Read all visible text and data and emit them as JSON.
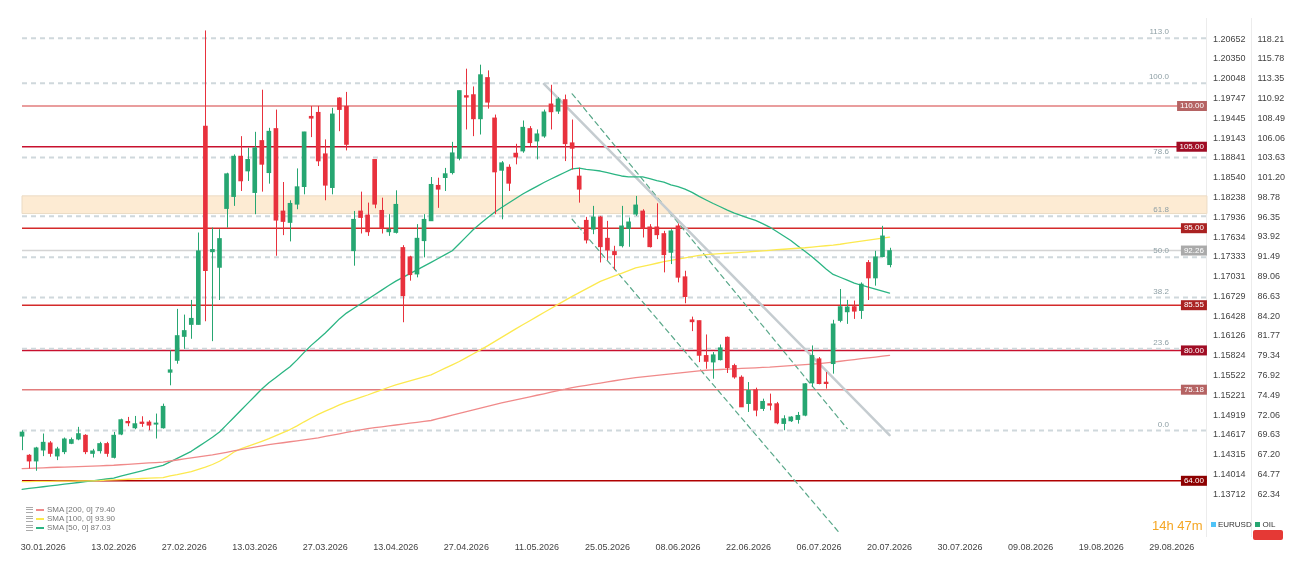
{
  "chart_data": {
    "type": "candlestick",
    "categories": [
      null,
      null,
      null,
      "30.01.2026",
      null,
      null,
      null,
      null,
      null,
      null,
      null,
      null,
      null,
      "13.02.2026",
      null,
      null,
      null,
      null,
      null,
      null,
      null,
      null,
      null,
      "27.02.2026",
      null,
      null,
      null,
      null,
      null,
      null,
      null,
      null,
      null,
      "13.03.2026",
      null,
      null,
      null,
      null,
      null,
      null,
      null,
      null,
      null,
      "27.03.2026",
      null,
      null,
      null,
      null,
      null,
      null,
      null,
      null,
      null,
      "13.04.2026",
      null,
      null,
      null,
      null,
      null,
      null,
      null,
      null,
      null,
      "27.04.2026",
      null,
      null,
      null,
      null,
      null,
      null,
      null,
      null,
      null,
      "11.05.2026",
      null,
      null,
      null,
      null,
      null,
      null,
      null,
      null,
      null,
      "25.05.2026",
      null,
      null,
      null,
      null,
      null,
      null,
      null,
      null,
      null,
      "08.06.2026",
      null,
      null,
      null,
      null,
      null,
      null,
      null,
      null,
      null,
      "22.06.2026",
      null,
      null,
      null,
      null,
      null,
      null,
      null,
      null,
      null,
      "06.07.2026",
      null,
      null,
      null,
      null,
      null,
      null,
      null,
      null,
      null,
      "20.07.2026",
      null,
      null,
      null,
      null,
      null,
      null,
      null,
      null,
      null,
      "30.07.2026",
      null,
      null,
      null,
      null,
      null,
      null,
      null,
      null,
      null,
      "09.08.2026",
      null,
      null,
      null,
      null,
      null,
      null,
      null,
      null,
      null,
      "19.08.2026",
      null,
      null,
      null,
      null,
      null,
      null,
      null,
      null,
      null,
      "29.08.2026",
      null,
      null,
      null,
      null,
      null
    ],
    "ohlc": [
      [
        69.47,
        70.2,
        67.76,
        69.99
      ],
      [
        67.15,
        67.27,
        65.52,
        66.42
      ],
      [
        66.42,
        68.17,
        65.23,
        68.05
      ],
      [
        67.76,
        69.8,
        67.03,
        68.74
      ],
      [
        68.66,
        68.87,
        66.95,
        67.35
      ],
      [
        67.03,
        68.17,
        66.54,
        67.92
      ],
      [
        67.56,
        69.31,
        67.27,
        69.15
      ],
      [
        68.58,
        69.31,
        68.5,
        69.07
      ],
      [
        69.11,
        70.62,
        68.98,
        69.8
      ],
      [
        69.6,
        69.72,
        67.27,
        67.56
      ],
      [
        67.35,
        67.92,
        66.86,
        67.68
      ],
      [
        67.68,
        68.78,
        67.35,
        68.58
      ],
      [
        68.58,
        68.78,
        66.95,
        67.35
      ],
      [
        66.86,
        70.0,
        66.74,
        69.6
      ],
      [
        69.72,
        71.63,
        69.6,
        71.51
      ],
      [
        71.3,
        71.84,
        70.7,
        71.1
      ],
      [
        70.49,
        71.96,
        70.33,
        71.02
      ],
      [
        71.22,
        71.92,
        70.62,
        71.02
      ],
      [
        71.22,
        71.43,
        70.2,
        70.82
      ],
      [
        70.94,
        72.25,
        69.19,
        71.1
      ],
      [
        70.49,
        73.47,
        70.41,
        73.15
      ],
      [
        77.31,
        80.0,
        75.72,
        77.63
      ],
      [
        78.77,
        85.1,
        78.37,
        81.83
      ],
      [
        81.71,
        84.4,
        80.2,
        82.45
      ],
      [
        83.18,
        86.2,
        81.43,
        83.95
      ],
      [
        83.18,
        94.47,
        83.18,
        92.23
      ],
      [
        107.52,
        119.27,
        83.58,
        89.78
      ],
      [
        92.1,
        95.08,
        81.14,
        92.4
      ],
      [
        90.19,
        94.88,
        86.19,
        93.74
      ],
      [
        97.41,
        101.81,
        95.08,
        101.69
      ],
      [
        98.88,
        104.06,
        97.74,
        103.85
      ],
      [
        103.85,
        106.3,
        99.57,
        100.8
      ],
      [
        102.02,
        104.88,
        100.8,
        103.45
      ],
      [
        99.37,
        106.83,
        96.72,
        104.88
      ],
      [
        105.77,
        112.0,
        99.49,
        102.84
      ],
      [
        101.81,
        107.32,
        100.47,
        106.91
      ],
      [
        107.24,
        109.56,
        91.62,
        95.98
      ],
      [
        97.12,
        100.67,
        94.15,
        95.82
      ],
      [
        95.7,
        98.43,
        93.38,
        98.06
      ],
      [
        97.94,
        102.34,
        97.33,
        100.1
      ],
      [
        100.1,
        106.83,
        99.16,
        106.83
      ],
      [
        108.74,
        110.0,
        106.18,
        108.5
      ],
      [
        109.23,
        110.0,
        102.63,
        103.25
      ],
      [
        104.14,
        105.9,
        98.43,
        100.27
      ],
      [
        99.98,
        109.77,
        99.16,
        109.03
      ],
      [
        111.0,
        111.08,
        106.91,
        109.56
      ],
      [
        109.97,
        111.73,
        104.55,
        105.28
      ],
      [
        92.23,
        97.12,
        90.4,
        96.1
      ],
      [
        97.12,
        99.49,
        94.35,
        96.31
      ],
      [
        96.63,
        98.14,
        94.06,
        94.55
      ],
      [
        103.45,
        103.45,
        97.45,
        97.94
      ],
      [
        97.2,
        98.75,
        94.35,
        95.0
      ],
      [
        94.55,
        96.72,
        94.06,
        94.88
      ],
      [
        94.47,
        99.65,
        94.35,
        97.94
      ],
      [
        92.64,
        92.92,
        83.46,
        86.7
      ],
      [
        91.5,
        91.62,
        88.56,
        89.29
      ],
      [
        89.37,
        95.5,
        88.97,
        93.78
      ],
      [
        93.46,
        96.72,
        91.42,
        96.1
      ],
      [
        95.9,
        101.28,
        95.9,
        100.39
      ],
      [
        100.27,
        101.2,
        97.5,
        99.78
      ],
      [
        101.2,
        102.4,
        99.57,
        101.7
      ],
      [
        101.81,
        105.6,
        101.6,
        104.26
      ],
      [
        103.57,
        111.9,
        103.33,
        111.9
      ],
      [
        111.28,
        114.58,
        107.12,
        111.08
      ],
      [
        111.4,
        112.4,
        106.3,
        108.42
      ],
      [
        108.42,
        115.07,
        106.5,
        113.85
      ],
      [
        113.5,
        114.37,
        109.68,
        110.46
      ],
      [
        108.54,
        108.95,
        96.72,
        101.9
      ],
      [
        102.1,
        103.24,
        96.1,
        103.04
      ],
      [
        102.5,
        102.84,
        99.57,
        100.51
      ],
      [
        104.22,
        105.36,
        102.84,
        103.73
      ],
      [
        104.47,
        108.22,
        104.26,
        107.4
      ],
      [
        107.24,
        107.53,
        105.08,
        105.49
      ],
      [
        105.69,
        107.12,
        103.45,
        106.59
      ],
      [
        106.3,
        109.56,
        106.1,
        109.28
      ],
      [
        110.26,
        112.6,
        107.12,
        109.28
      ],
      [
        109.36,
        111.08,
        109.03,
        110.87
      ],
      [
        110.79,
        111.4,
        103.24,
        105.36
      ],
      [
        105.49,
        108.34,
        102.2,
        104.8
      ],
      [
        101.41,
        102.43,
        98.14,
        99.78
      ],
      [
        95.98,
        96.39,
        93.13,
        93.54
      ],
      [
        94.88,
        97.74,
        94.27,
        96.39
      ],
      [
        96.39,
        96.51,
        90.8,
        92.72
      ],
      [
        93.78,
        95.9,
        91.09,
        92.31
      ],
      [
        92.15,
        92.84,
        89.9,
        91.74
      ],
      [
        92.84,
        97.74,
        92.64,
        95.29
      ],
      [
        94.96,
        96.31,
        92.72,
        95.78
      ],
      [
        96.72,
        98.96,
        96.51,
        97.86
      ],
      [
        97.12,
        97.33,
        93.86,
        95.0
      ],
      [
        95.17,
        95.5,
        92.64,
        92.72
      ],
      [
        95.17,
        98.06,
        93.66,
        94.19
      ],
      [
        94.35,
        94.68,
        89.58,
        91.74
      ],
      [
        92.03,
        94.88,
        90.6,
        94.68
      ],
      [
        95.29,
        95.58,
        88.35,
        88.97
      ],
      [
        89.05,
        89.78,
        85.79,
        86.6
      ],
      [
        83.76,
        84.15,
        82.37,
        83.51
      ],
      [
        83.67,
        83.67,
        78.57,
        79.39
      ],
      [
        79.39,
        81.96,
        77.75,
        78.65
      ],
      [
        78.57,
        79.8,
        76.53,
        79.47
      ],
      [
        78.85,
        80.73,
        78.77,
        80.33
      ],
      [
        81.63,
        81.71,
        77.23,
        77.88
      ],
      [
        78.16,
        78.37,
        76.53,
        76.73
      ],
      [
        76.73,
        76.94,
        73.06,
        73.06
      ],
      [
        73.47,
        76.12,
        72.45,
        75.1
      ],
      [
        75.18,
        75.43,
        71.92,
        72.66
      ],
      [
        72.86,
        74.08,
        72.57,
        73.76
      ],
      [
        73.47,
        74.7,
        72.65,
        73.27
      ],
      [
        73.47,
        73.68,
        70.94,
        71.1
      ],
      [
        71.02,
        72.04,
        70.2,
        71.63
      ],
      [
        71.35,
        71.92,
        71.22,
        71.84
      ],
      [
        71.51,
        72.45,
        71.02,
        72.04
      ],
      [
        72.04,
        76.0,
        71.92,
        75.92
      ],
      [
        76.0,
        80.61,
        75.51,
        79.39
      ],
      [
        78.98,
        79.19,
        75.84,
        75.92
      ],
      [
        76.12,
        77.35,
        75.31,
        75.92
      ],
      [
        78.37,
        83.76,
        77.15,
        83.26
      ],
      [
        83.67,
        87.54,
        83.46,
        85.38
      ],
      [
        84.73,
        86.2,
        83.26,
        85.34
      ],
      [
        85.38,
        86.12,
        83.87,
        84.81
      ],
      [
        84.89,
        88.35,
        83.87,
        88.15
      ],
      [
        90.8,
        91.09,
        86.19,
        88.89
      ],
      [
        88.89,
        92.23,
        87.95,
        91.5
      ],
      [
        91.5,
        95.29,
        91.42,
        94.06
      ],
      [
        90.52,
        92.6,
        90.2,
        92.26
      ],
      null,
      null,
      null,
      null,
      null,
      null,
      null,
      null,
      null,
      null,
      null,
      null,
      null,
      null,
      null,
      null,
      null,
      null,
      null,
      null,
      null,
      null,
      null,
      null,
      null,
      null,
      null,
      null,
      null,
      null,
      null,
      null,
      null,
      null,
      null,
      null,
      null,
      null,
      null,
      null,
      null,
      null,
      null,
      null,
      null
    ],
    "series": [
      {
        "type": "line",
        "name": "SMA [200, 0] 79.40",
        "color": "#f08a8a",
        "values": [
          65.5,
          65.53,
          65.56,
          65.59,
          65.63,
          65.66,
          65.69,
          65.72,
          65.75,
          65.78,
          65.81,
          65.84,
          65.88,
          65.91,
          65.97,
          66.02,
          66.08,
          66.13,
          66.19,
          66.24,
          66.3,
          66.43,
          66.55,
          66.68,
          66.8,
          66.93,
          67.05,
          67.18,
          67.34,
          67.5,
          67.66,
          67.82,
          67.97,
          68.13,
          68.29,
          68.43,
          68.55,
          68.67,
          68.79,
          68.91,
          69.03,
          69.15,
          69.28,
          69.44,
          69.6,
          69.76,
          69.93,
          70.09,
          70.25,
          70.41,
          70.52,
          70.63,
          70.74,
          70.85,
          70.96,
          71.07,
          71.18,
          71.29,
          71.4,
          71.62,
          71.83,
          72.05,
          72.27,
          72.48,
          72.7,
          72.92,
          73.13,
          73.35,
          73.56,
          73.75,
          73.93,
          74.12,
          74.31,
          74.5,
          74.68,
          74.87,
          75.06,
          75.24,
          75.44,
          75.58,
          75.72,
          75.86,
          76.0,
          76.14,
          76.28,
          76.42,
          76.55,
          76.66,
          76.75,
          76.84,
          76.94,
          77.03,
          77.12,
          77.21,
          77.31,
          77.4,
          77.49,
          77.57,
          77.61,
          77.66,
          77.7,
          77.74,
          77.79,
          77.83,
          77.87,
          77.91,
          77.95,
          78.02,
          78.08,
          78.14,
          78.2,
          78.26,
          78.32,
          78.38,
          78.47,
          78.57,
          78.67,
          78.78,
          78.88,
          78.99,
          79.09,
          79.19,
          79.3,
          79.4,
          null,
          null,
          null,
          null,
          null,
          null,
          null,
          null,
          null,
          null,
          null,
          null,
          null,
          null,
          null,
          null,
          null,
          null,
          null,
          null,
          null,
          null,
          null,
          null,
          null,
          null,
          null,
          null,
          null,
          null,
          null,
          null,
          null,
          null,
          null,
          null,
          null,
          null,
          null,
          null,
          null,
          null,
          null,
          null,
          null
        ]
      },
      {
        "type": "line",
        "name": "SMA [100, 0] 93.90",
        "color": "#fce94f",
        "values": [
          63.9,
          63.91,
          63.92,
          63.93,
          63.94,
          63.95,
          63.96,
          63.97,
          63.98,
          63.99,
          64.0,
          64.02,
          64.07,
          64.11,
          64.15,
          64.19,
          64.23,
          64.28,
          64.32,
          64.36,
          64.4,
          64.6,
          64.76,
          64.94,
          65.13,
          65.4,
          65.68,
          66.0,
          66.4,
          66.9,
          67.5,
          67.92,
          68.23,
          68.54,
          68.85,
          69.18,
          69.55,
          69.92,
          70.29,
          70.74,
          71.24,
          71.71,
          72.16,
          72.55,
          72.93,
          73.31,
          73.65,
          73.94,
          74.24,
          74.53,
          74.85,
          75.16,
          75.48,
          75.77,
          76.02,
          76.26,
          76.51,
          76.75,
          77.0,
          77.41,
          77.82,
          78.23,
          78.64,
          79.11,
          79.59,
          80.07,
          80.56,
          81.08,
          81.6,
          82.13,
          82.65,
          83.15,
          83.65,
          84.15,
          84.65,
          85.15,
          85.65,
          86.15,
          86.63,
          87.09,
          87.55,
          88.02,
          88.47,
          88.81,
          89.14,
          89.47,
          89.8,
          90.12,
          90.31,
          90.5,
          90.7,
          90.89,
          91.05,
          91.2,
          91.35,
          91.51,
          91.66,
          91.77,
          91.82,
          91.87,
          91.93,
          91.98,
          92.04,
          92.1,
          92.17,
          92.23,
          92.29,
          92.36,
          92.42,
          92.48,
          92.54,
          92.6,
          92.68,
          92.77,
          92.85,
          92.93,
          93.03,
          93.16,
          93.28,
          93.41,
          93.53,
          93.65,
          93.78,
          93.9,
          null,
          null,
          null,
          null,
          null,
          null,
          null,
          null,
          null,
          null,
          null,
          null,
          null,
          null,
          null,
          null,
          null,
          null,
          null,
          null,
          null,
          null,
          null,
          null,
          null,
          null,
          null,
          null,
          null,
          null,
          null,
          null,
          null,
          null,
          null,
          null,
          null,
          null,
          null,
          null,
          null,
          null,
          null,
          null,
          null
        ]
      },
      {
        "type": "line",
        "name": "SMA [50, 0] 87.03",
        "color": "#2bb583",
        "values": [
          62.95,
          63.06,
          63.16,
          63.27,
          63.37,
          63.48,
          63.58,
          63.69,
          63.79,
          63.9,
          64.0,
          64.11,
          64.22,
          64.34,
          64.57,
          64.79,
          65.01,
          65.23,
          65.46,
          65.68,
          65.9,
          66.33,
          66.75,
          67.18,
          67.62,
          68.19,
          68.77,
          69.34,
          69.98,
          70.86,
          71.74,
          72.62,
          73.5,
          74.38,
          75.26,
          76.03,
          76.69,
          77.34,
          78.0,
          78.84,
          79.76,
          80.62,
          81.36,
          82.14,
          83.0,
          83.87,
          84.58,
          85.14,
          85.7,
          86.27,
          86.83,
          87.4,
          87.96,
          88.5,
          88.96,
          89.42,
          89.88,
          90.34,
          90.8,
          91.28,
          91.75,
          92.23,
          93.1,
          93.97,
          94.84,
          95.58,
          96.27,
          96.96,
          97.54,
          98.09,
          98.65,
          99.2,
          99.67,
          100.14,
          100.61,
          101.04,
          101.45,
          101.87,
          102.28,
          102.38,
          102.23,
          102.12,
          102.02,
          101.83,
          101.62,
          101.41,
          101.3,
          101.3,
          101.3,
          101.08,
          100.85,
          100.65,
          100.31,
          100.1,
          99.79,
          99.4,
          98.9,
          98.46,
          98.03,
          97.63,
          97.22,
          96.85,
          96.54,
          96.24,
          95.96,
          95.57,
          95.14,
          94.6,
          94.05,
          93.5,
          92.83,
          92.17,
          91.5,
          90.75,
          90.0,
          89.33,
          88.98,
          88.62,
          88.27,
          88.0,
          87.76,
          87.51,
          87.27,
          87.03,
          null,
          null,
          null,
          null,
          null,
          null,
          null,
          null,
          null,
          null,
          null,
          null,
          null,
          null,
          null,
          null,
          null,
          null,
          null,
          null,
          null,
          null,
          null,
          null,
          null,
          null,
          null,
          null,
          null,
          null,
          null,
          null,
          null,
          null,
          null,
          null,
          null,
          null,
          null,
          null,
          null,
          null,
          null,
          null,
          null
        ]
      },
      {
        "type": "line",
        "color": "#c5ccd0",
        "line_style": "solid",
        "values": [
          null,
          null,
          null,
          null,
          null,
          null,
          null,
          null,
          null,
          null,
          null,
          null,
          null,
          null,
          null,
          null,
          null,
          null,
          null,
          null,
          null,
          null,
          null,
          null,
          null,
          null,
          null,
          null,
          null,
          null,
          null,
          null,
          null,
          null,
          null,
          null,
          null,
          null,
          null,
          null,
          null,
          null,
          null,
          null,
          null,
          null,
          null,
          null,
          null,
          null,
          null,
          null,
          null,
          null,
          null,
          null,
          null,
          null,
          null,
          null,
          null,
          null,
          null,
          null,
          null,
          null,
          null,
          null,
          null,
          null,
          null,
          null,
          null,
          null,
          112.7,
          null,
          null,
          null,
          null,
          null,
          null,
          null,
          null,
          null,
          null,
          null,
          null,
          null,
          null,
          null,
          null,
          null,
          null,
          null,
          null,
          null,
          null,
          null,
          null,
          null,
          null,
          null,
          null,
          null,
          null,
          null,
          null,
          null,
          null,
          null,
          null,
          null,
          null,
          null,
          null,
          null,
          null,
          null,
          null,
          null,
          null,
          null,
          null,
          69.6,
          null,
          null,
          null,
          null,
          null,
          null,
          null,
          null,
          null,
          null,
          null,
          null,
          null,
          null,
          null,
          null,
          null,
          null,
          null,
          null,
          null,
          null,
          null,
          null,
          null,
          null,
          null,
          null,
          null,
          null,
          null,
          null,
          null,
          null,
          null,
          null,
          null,
          null,
          null,
          null,
          null,
          null,
          null,
          null,
          null
        ]
      },
      {
        "type": "line",
        "color": "#5aa88a",
        "line_style": "dashed",
        "values": [
          null,
          null,
          null,
          null,
          null,
          null,
          null,
          null,
          null,
          null,
          null,
          null,
          null,
          null,
          null,
          null,
          null,
          null,
          null,
          null,
          null,
          null,
          null,
          null,
          null,
          null,
          null,
          null,
          null,
          null,
          null,
          null,
          null,
          null,
          null,
          null,
          null,
          null,
          null,
          null,
          null,
          null,
          null,
          null,
          null,
          null,
          null,
          null,
          null,
          null,
          null,
          null,
          null,
          null,
          null,
          null,
          null,
          null,
          null,
          null,
          null,
          null,
          null,
          null,
          null,
          null,
          null,
          null,
          null,
          null,
          null,
          null,
          null,
          null,
          null,
          null,
          null,
          null,
          111.5,
          null,
          null,
          null,
          null,
          null,
          null,
          null,
          null,
          null,
          null,
          null,
          null,
          null,
          null,
          null,
          null,
          null,
          null,
          null,
          null,
          null,
          null,
          null,
          null,
          null,
          null,
          null,
          null,
          null,
          null,
          null,
          null,
          null,
          null,
          null,
          null,
          null,
          null,
          70.4,
          null,
          null,
          null,
          null,
          null,
          null,
          null,
          null,
          null,
          null,
          null,
          null,
          null,
          null,
          null,
          null,
          null,
          null,
          null,
          null,
          null,
          null,
          null,
          null,
          null,
          null,
          null,
          null,
          null,
          null,
          null,
          null,
          null,
          null,
          null,
          null,
          null,
          null,
          null,
          null,
          null,
          null,
          null,
          null,
          null,
          null,
          null,
          null,
          null,
          null,
          null
        ]
      },
      {
        "type": "line",
        "color": "#5aa88a",
        "line_style": "dashed",
        "values": [
          null,
          null,
          null,
          null,
          null,
          null,
          null,
          null,
          null,
          null,
          null,
          null,
          null,
          null,
          null,
          null,
          null,
          null,
          null,
          null,
          null,
          null,
          null,
          null,
          null,
          null,
          null,
          null,
          null,
          null,
          null,
          null,
          null,
          null,
          null,
          null,
          null,
          null,
          null,
          null,
          null,
          null,
          null,
          null,
          null,
          null,
          null,
          null,
          null,
          null,
          null,
          null,
          null,
          null,
          null,
          null,
          null,
          null,
          null,
          null,
          null,
          null,
          null,
          null,
          null,
          null,
          null,
          null,
          null,
          null,
          null,
          null,
          null,
          null,
          null,
          null,
          null,
          null,
          96.1,
          null,
          null,
          null,
          null,
          null,
          null,
          null,
          null,
          null,
          null,
          null,
          null,
          null,
          null,
          null,
          null,
          null,
          null,
          null,
          null,
          null,
          null,
          null,
          null,
          null,
          null,
          null,
          null,
          null,
          null,
          null,
          null,
          null,
          null,
          null,
          null,
          null,
          57.5,
          null,
          null,
          null,
          null,
          null,
          null,
          null,
          null,
          null,
          null,
          null,
          null,
          null,
          null,
          null,
          null,
          null,
          null,
          null,
          null,
          null,
          null,
          null,
          null,
          null,
          null,
          null,
          null,
          null,
          null,
          null,
          null,
          null,
          null,
          null,
          null,
          null,
          null,
          null,
          null,
          null,
          null,
          null,
          null,
          null,
          null,
          null,
          null,
          null,
          null,
          null,
          null
        ]
      }
    ],
    "ylim": [
      57.2,
      120.8
    ],
    "yticks": [
      62.34,
      64.77,
      {
        "value": 67.2,
        "label": "67.20"
      },
      69.63,
      72.06,
      74.49,
      76.92,
      79.34,
      81.77,
      {
        "value": 84.2,
        "label": "84.20"
      },
      86.63,
      89.06,
      91.49,
      93.92,
      96.35,
      98.78,
      {
        "value": 101.2,
        "label": "101.20"
      },
      103.63,
      106.06,
      108.49,
      110.92,
      113.35,
      115.78,
      118.21
    ],
    "y2lim": [
      1.13074,
      1.20974
    ],
    "y2ticks": [
      1.13712,
      1.14014,
      1.14315,
      1.14617,
      1.14919,
      1.15221,
      1.15522,
      1.15824,
      1.16126,
      1.16428,
      1.16729,
      1.17031,
      1.17333,
      1.17634,
      1.17936,
      1.18238,
      {
        "value": 1.1854,
        "label": "1.18540"
      },
      1.18841,
      1.19143,
      1.19445,
      1.19747,
      1.20048,
      {
        "value": 1.2035,
        "label": "1.20350"
      },
      1.20652
    ],
    "ylabel": "OIL",
    "y2label": "EURUSD",
    "ref_lines": [
      {
        "axis": "y",
        "value": 110,
        "label": "110.00",
        "color": "#e27c7c",
        "line_style": "solid"
      },
      {
        "axis": "y",
        "value": 105,
        "label": "105.00",
        "color": "#c8102e",
        "line_style": "solid"
      },
      {
        "axis": "y",
        "value": 95,
        "label": "95.00",
        "color": "#d42a2a",
        "line_style": "solid"
      },
      {
        "axis": "y",
        "value": 85.55,
        "label": "85.55",
        "color": "#d42a2a",
        "line_style": "solid"
      },
      {
        "axis": "y",
        "value": 80,
        "label": "80.00",
        "color": "#c8102e",
        "line_style": "solid"
      },
      {
        "axis": "y",
        "value": 75.18,
        "label": "75.18",
        "color": "#e27c7c",
        "line_style": "solid"
      },
      {
        "axis": "y",
        "value": 64,
        "label": "64.00",
        "color": "#b00000",
        "line_style": "solid"
      },
      {
        "axis": "y",
        "value": 92.26,
        "label": "92.26",
        "color": "#d4d4d4",
        "line_style": "solid"
      },
      {
        "axis": "y",
        "value": 118.33,
        "color": "#cfd8dc",
        "line_style": "dashed"
      },
      {
        "axis": "y",
        "value": 112.79,
        "color": "#cfd8dc",
        "line_style": "dashed"
      },
      {
        "axis": "y",
        "value": 103.67,
        "color": "#cfd8dc",
        "line_style": "dashed"
      },
      {
        "axis": "y",
        "value": 96.47,
        "color": "#cfd8dc",
        "line_style": "dashed"
      },
      {
        "axis": "y",
        "value": 91.45,
        "color": "#cfd8dc",
        "line_style": "dashed"
      },
      {
        "axis": "y",
        "value": 86.49,
        "color": "#cfd8dc",
        "line_style": "dashed"
      },
      {
        "axis": "y",
        "value": 80.2,
        "color": "#cfd8dc",
        "line_style": "dashed"
      },
      {
        "axis": "y",
        "value": 70.17,
        "color": "#cfd8dc",
        "line_style": "dashed"
      }
    ],
    "bands": [
      {
        "axis": "y",
        "from": 96.8,
        "to": 98.97,
        "color": "#fdebd3"
      }
    ],
    "annotations": [
      "14h 47m",
      {
        "text": "113.0",
        "y": 118.33
      },
      {
        "text": "100.0",
        "y": 112.79
      },
      {
        "text": "78.6",
        "y": 103.67
      },
      {
        "text": "61.8",
        "y": 96.47
      },
      {
        "text": "50.0",
        "y": 91.45
      },
      {
        "text": "38.2",
        "y": 86.49
      },
      {
        "text": "23.6",
        "y": 80.2
      },
      {
        "text": "0.0",
        "y": 70.17
      }
    ],
    "legend": "bottom left",
    "grid": false
  }
}
